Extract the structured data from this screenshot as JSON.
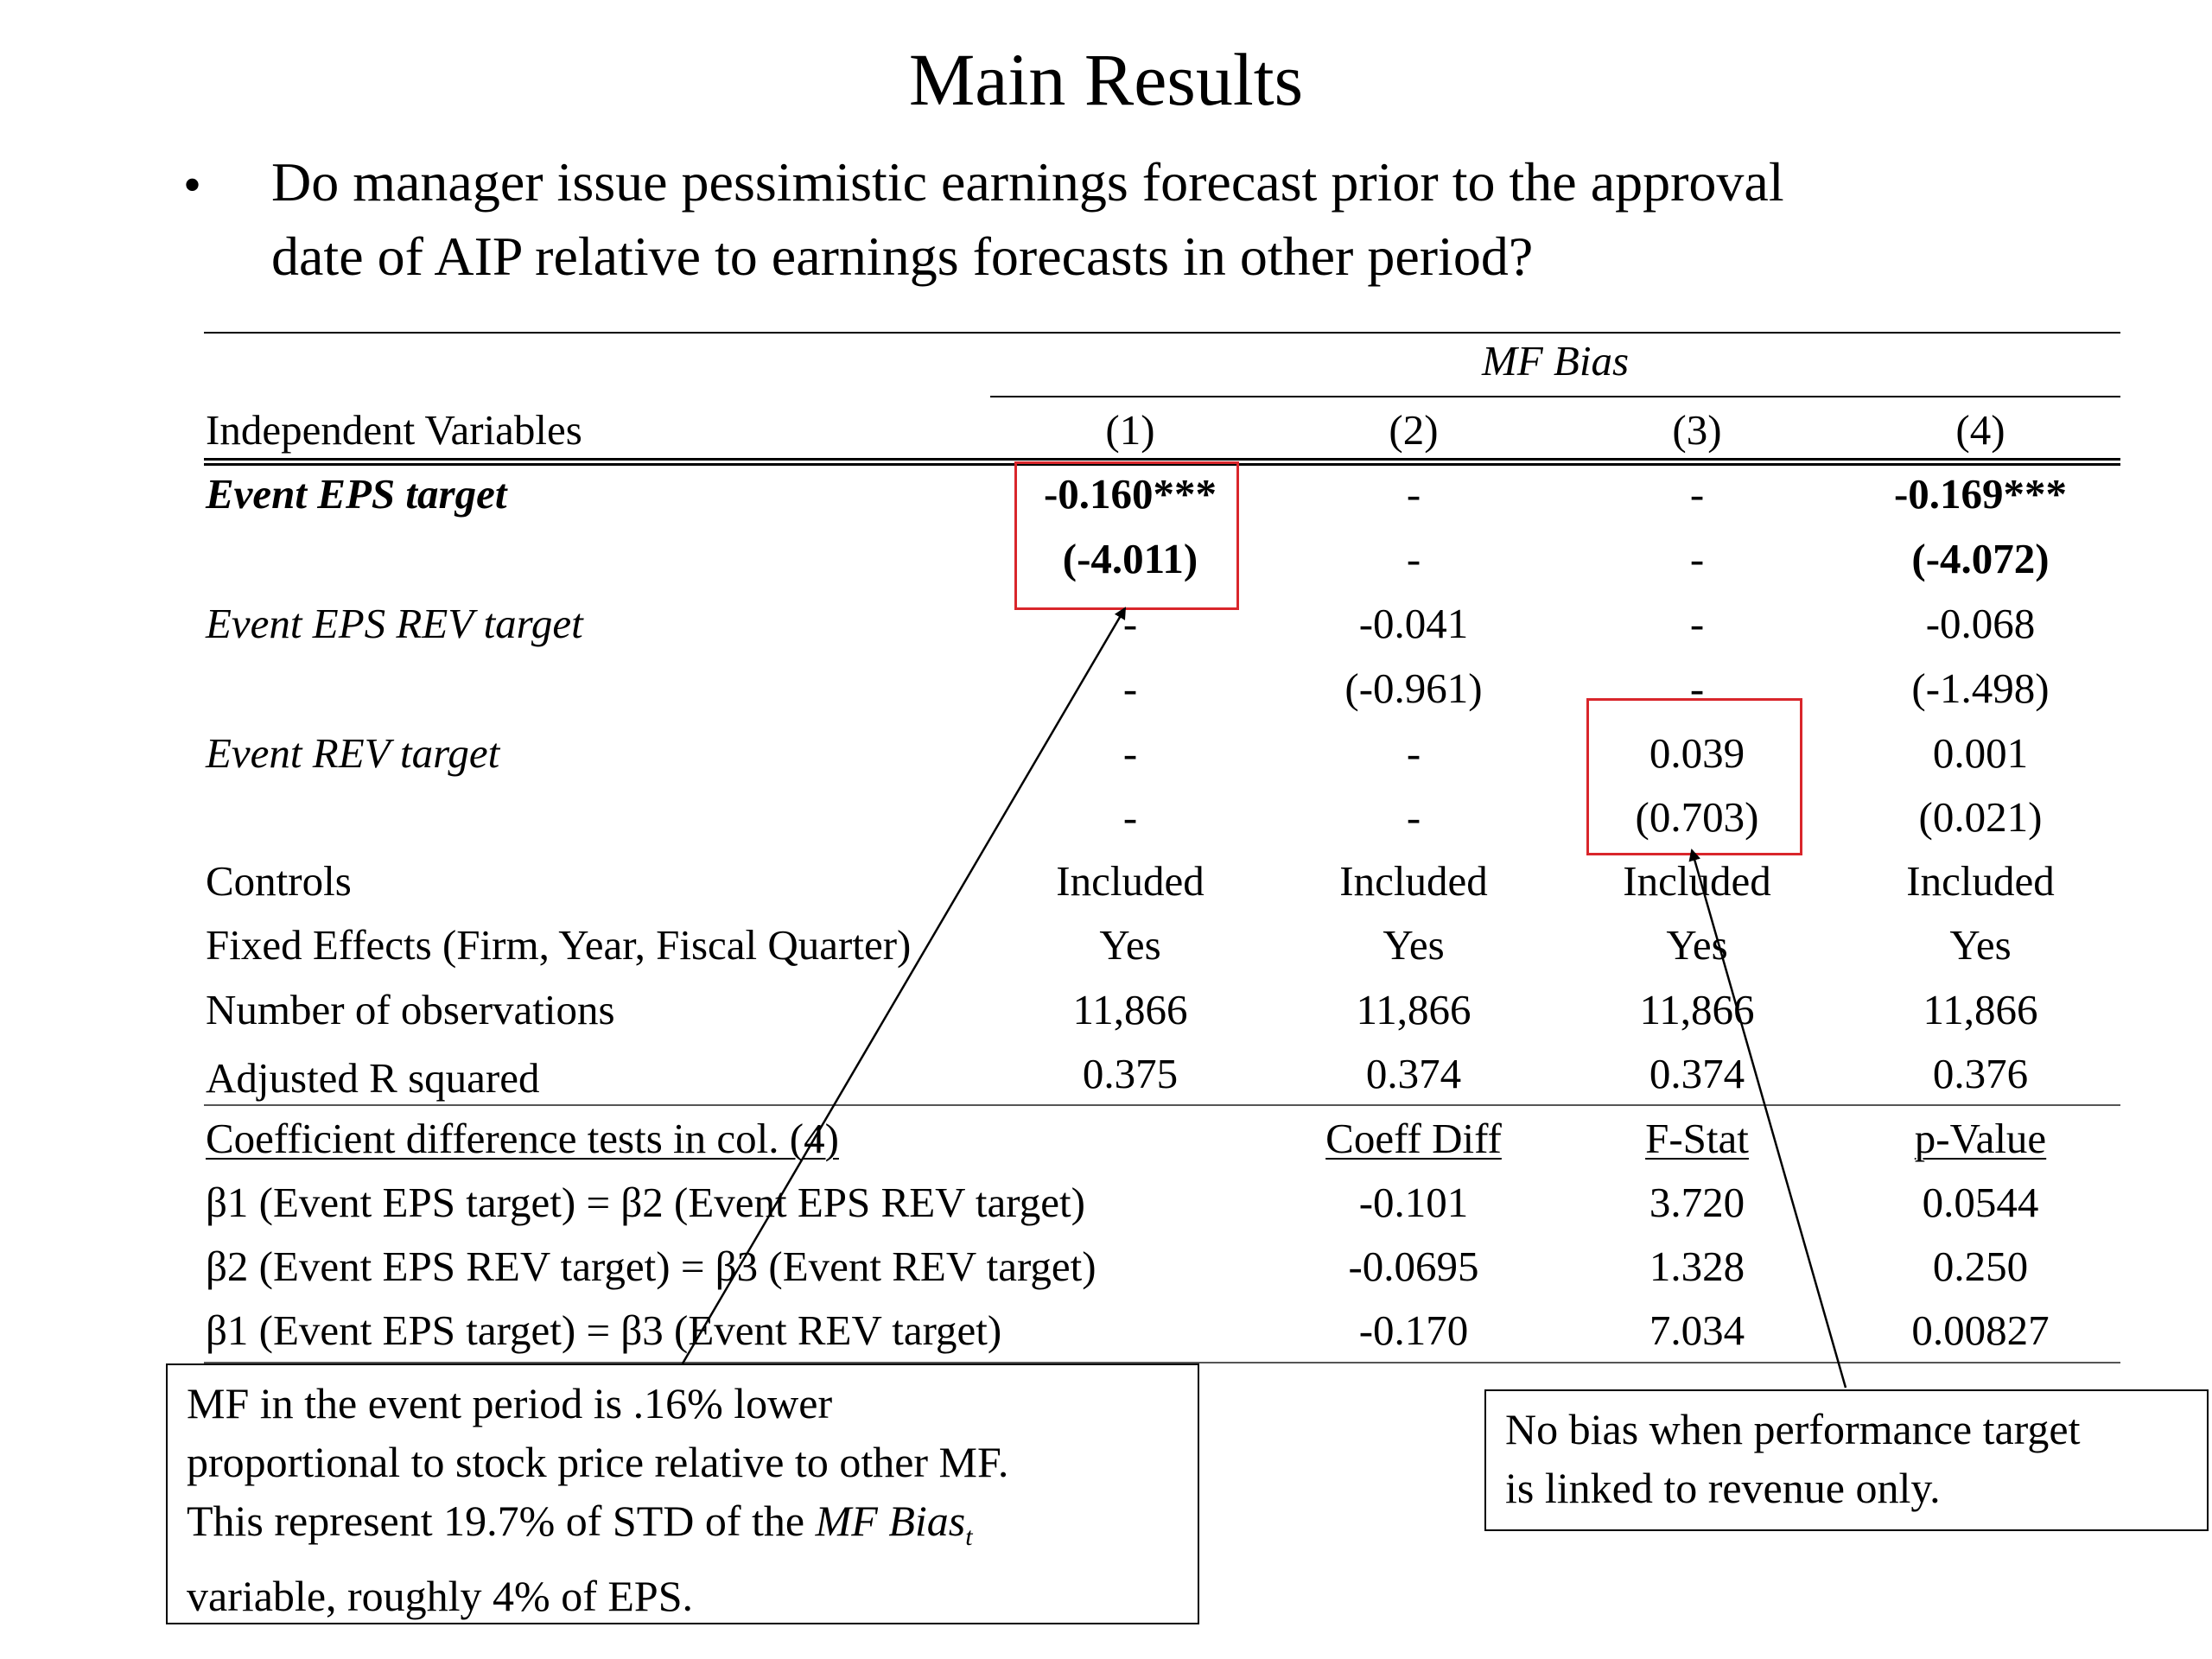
{
  "title": "Main Results",
  "bullet": {
    "symbol": "•",
    "lines": [
      "Do manager issue pessimistic earnings forecast prior to the approval",
      "date of AIP relative to earnings forecasts in other period?"
    ]
  },
  "table": {
    "dependent_header": "MF Bias",
    "label_header": "Independent Variables",
    "columns": [
      "(1)",
      "(2)",
      "(3)",
      "(4)"
    ],
    "rows": [
      {
        "label": "Event EPS target",
        "cells": [
          "-0.160***",
          "-",
          "-",
          "-0.169***"
        ]
      },
      {
        "label": "",
        "cells": [
          "(-4.011)",
          "-",
          "-",
          "(-4.072)"
        ]
      },
      {
        "label": "Event EPS REV target",
        "cells": [
          "-",
          "-0.041",
          "-",
          "-0.068"
        ]
      },
      {
        "label": "",
        "cells": [
          "-",
          "(-0.961)",
          "-",
          "(-1.498)"
        ]
      },
      {
        "label": "Event REV target",
        "cells": [
          "-",
          "-",
          "0.039",
          "0.001"
        ]
      },
      {
        "label": "",
        "cells": [
          "-",
          "-",
          "(0.703)",
          "(0.021)"
        ]
      },
      {
        "label": "Controls",
        "cells": [
          "Included",
          "Included",
          "Included",
          "Included"
        ]
      },
      {
        "label": "Fixed Effects (Firm, Year, Fiscal Quarter)",
        "cells": [
          "Yes",
          "Yes",
          "Yes",
          "Yes"
        ]
      },
      {
        "label": "Number of observations",
        "cells": [
          "11,866",
          "11,866",
          "11,866",
          "11,866"
        ]
      },
      {
        "label": "Adjusted R squared",
        "cells": [
          "0.375",
          "0.374",
          "0.374",
          "0.376"
        ]
      }
    ],
    "tests_header": {
      "label": "Coefficient difference tests in col. (4)",
      "cells": [
        "Coeff Diff",
        "F-Stat",
        "p-Value"
      ]
    },
    "tests": [
      {
        "label": "β1 (Event EPS target) = β2 (Event EPS REV target)",
        "cells": [
          "-0.101",
          "3.720",
          "0.0544"
        ]
      },
      {
        "label": "β2 (Event EPS REV target) = β3 (Event REV target)",
        "cells": [
          "-0.0695",
          "1.328",
          "0.250"
        ]
      },
      {
        "label": "β1 (Event EPS target) = β3 (Event REV target)",
        "cells": [
          "-0.170",
          "7.034",
          "0.00827"
        ]
      }
    ]
  },
  "notes": {
    "left": {
      "line1": "MF in the event period is .16% lower",
      "line2": "proportional to stock price relative to other MF.",
      "line3_prefix": "This represent 19.7% of STD of the ",
      "line3_italic": "MF Bias",
      "line3_sub": "t",
      "line4": "variable, roughly 4% of EPS."
    },
    "right": {
      "line1": "No bias when performance target",
      "line2": "is linked to revenue only."
    }
  },
  "colors": {
    "highlight": "#d9262b",
    "text": "#000000"
  }
}
